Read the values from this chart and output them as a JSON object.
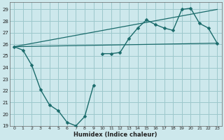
{
  "xlabel": "Humidex (Indice chaleur)",
  "bg_color": "#cde8ec",
  "grid_color": "#9dc8cc",
  "line_color": "#1a6b6b",
  "xlim": [
    -0.5,
    23.5
  ],
  "ylim": [
    19,
    29.6
  ],
  "yticks": [
    19,
    20,
    21,
    22,
    23,
    24,
    25,
    26,
    27,
    28,
    29
  ],
  "xticks": [
    0,
    1,
    2,
    3,
    4,
    5,
    6,
    7,
    8,
    9,
    10,
    11,
    12,
    13,
    14,
    15,
    16,
    17,
    18,
    19,
    20,
    21,
    22,
    23
  ],
  "series_lower": {
    "x": [
      0,
      1,
      2,
      3,
      4,
      5,
      6,
      7,
      8,
      9
    ],
    "y": [
      25.8,
      25.5,
      24.2,
      22.1,
      20.8,
      20.3,
      19.3,
      19.0,
      19.8,
      22.5
    ],
    "markersize": 2.5
  },
  "series_upper": {
    "x": [
      10,
      11,
      12,
      13,
      14,
      15,
      16,
      17,
      18,
      19,
      20,
      21,
      22,
      23
    ],
    "y": [
      25.2,
      25.2,
      25.3,
      26.5,
      27.4,
      28.1,
      27.7,
      27.4,
      27.2,
      29.0,
      29.1,
      27.8,
      27.4,
      26.1
    ],
    "markersize": 2.5
  },
  "line_upper": {
    "x": [
      0,
      23
    ],
    "y": [
      25.8,
      29.0
    ]
  },
  "line_lower": {
    "x": [
      0,
      23
    ],
    "y": [
      25.8,
      26.1
    ]
  }
}
